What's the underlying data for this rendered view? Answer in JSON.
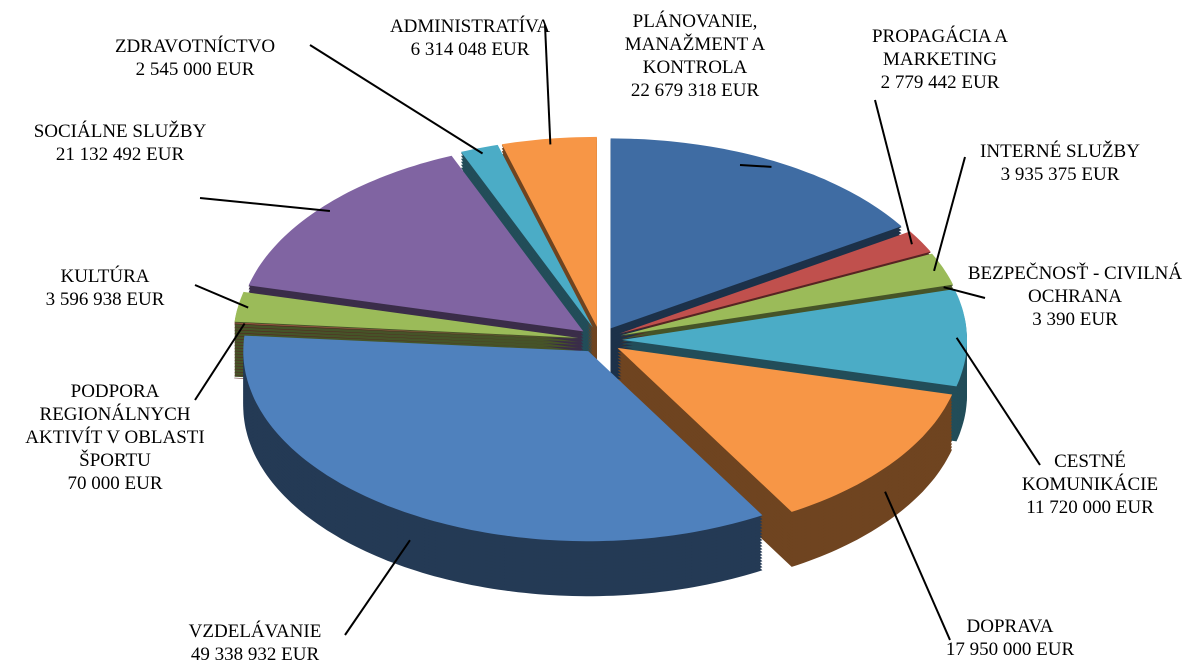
{
  "chart_data": {
    "type": "pie",
    "categories": [
      "PLÁNOVANIE, MANAŽMENT A KONTROLA",
      "PROPAGÁCIA A MARKETING",
      "INTERNÉ SLUŽBY",
      "BEZPEČNOSŤ - CIVILNÁ OCHRANA",
      "CESTNÉ KOMUNIKÁCIE",
      "DOPRAVA",
      "VZDELÁVANIE",
      "PODPORA REGIONÁLNYCH AKTIVÍT V OBLASTI ŠPORTU",
      "KULTÚRA",
      "SOCIÁLNE SLUŽBY",
      "ZDRAVOTNÍCTVO",
      "ADMINISTRATÍVA"
    ],
    "values": [
      22679318,
      2779442,
      3935375,
      3390,
      11720000,
      17950000,
      49338932,
      70000,
      3596938,
      21132492,
      2545000,
      6314048
    ],
    "value_labels": [
      "22 679 318 EUR",
      "2 779 442 EUR",
      "3 935 375 EUR",
      "3 390 EUR",
      "11 720 000 EUR",
      "17 950 000 EUR",
      "49 338 932 EUR",
      "70 000 EUR",
      "3 596 938 EUR",
      "21 132 492 EUR",
      "2 545 000 EUR",
      "6 314 048 EUR"
    ],
    "colors": [
      "#3f6ca3",
      "#c0504d",
      "#9bbb59",
      "#8064a2",
      "#4bacc6",
      "#f79646",
      "#4f81bd",
      "#c0504d",
      "#9bbb59",
      "#8064a2",
      "#4bacc6",
      "#f79646"
    ]
  }
}
